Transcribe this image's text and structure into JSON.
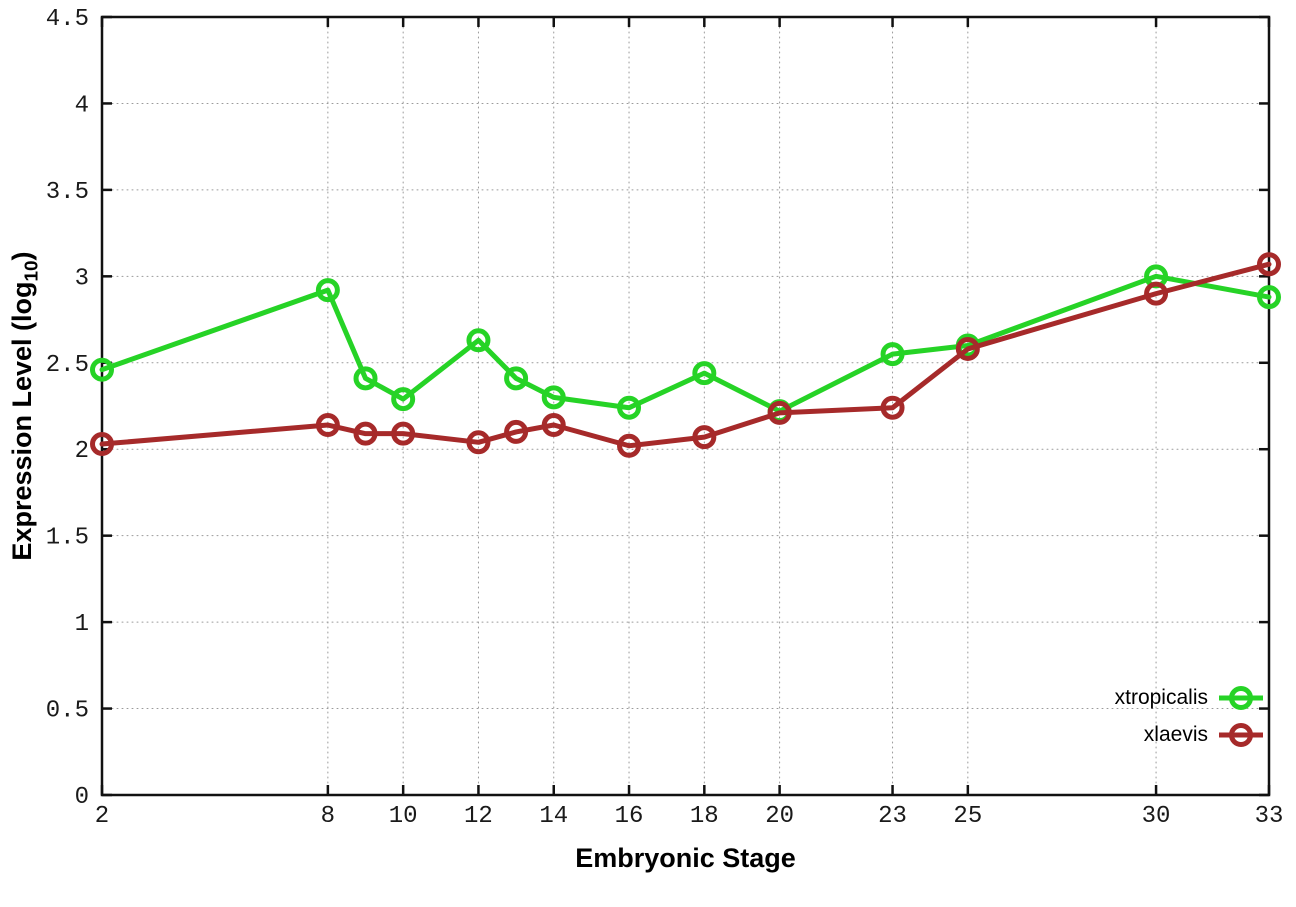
{
  "chart_data": {
    "type": "line",
    "title": "",
    "xlabel": "Embryonic Stage",
    "ylabel": "Expression Level (log10)",
    "ylabel_display": {
      "main": "Expression Level (log",
      "sub": "10",
      "close": ")"
    },
    "x": [
      2,
      8,
      9,
      10,
      12,
      13,
      14,
      16,
      18,
      20,
      23,
      25,
      30,
      33
    ],
    "series": [
      {
        "name": "xtropicalis",
        "color": "#26d326",
        "values": [
          2.46,
          2.92,
          2.41,
          2.29,
          2.63,
          2.41,
          2.3,
          2.24,
          2.44,
          2.22,
          2.55,
          2.6,
          3.0,
          2.88
        ]
      },
      {
        "name": "xlaevis",
        "color": "#a62a2a",
        "values": [
          2.03,
          2.14,
          2.09,
          2.09,
          2.04,
          2.1,
          2.14,
          2.02,
          2.07,
          2.21,
          2.24,
          2.58,
          2.9,
          3.07
        ]
      }
    ],
    "xticks": [
      2,
      8,
      10,
      12,
      14,
      16,
      18,
      20,
      23,
      25,
      30,
      33
    ],
    "xtick_labels": [
      "2",
      "8",
      "10",
      "12",
      "14",
      "16",
      "18",
      "20",
      "23",
      "25",
      "30",
      "33"
    ],
    "yticks": [
      0,
      0.5,
      1,
      1.5,
      2,
      2.5,
      3,
      3.5,
      4,
      4.5
    ],
    "ytick_labels": [
      "0",
      "0.5",
      "1",
      "1.5",
      "2",
      "2.5",
      "3",
      "3.5",
      "4",
      "4.5"
    ],
    "xlim": [
      2,
      33
    ],
    "ylim": [
      0,
      4.5
    ],
    "grid": true,
    "marker": "open-circle",
    "legend_position": "inside-bottom-right",
    "axis_color": "#111111",
    "grid_color": "#9a9a9a"
  }
}
